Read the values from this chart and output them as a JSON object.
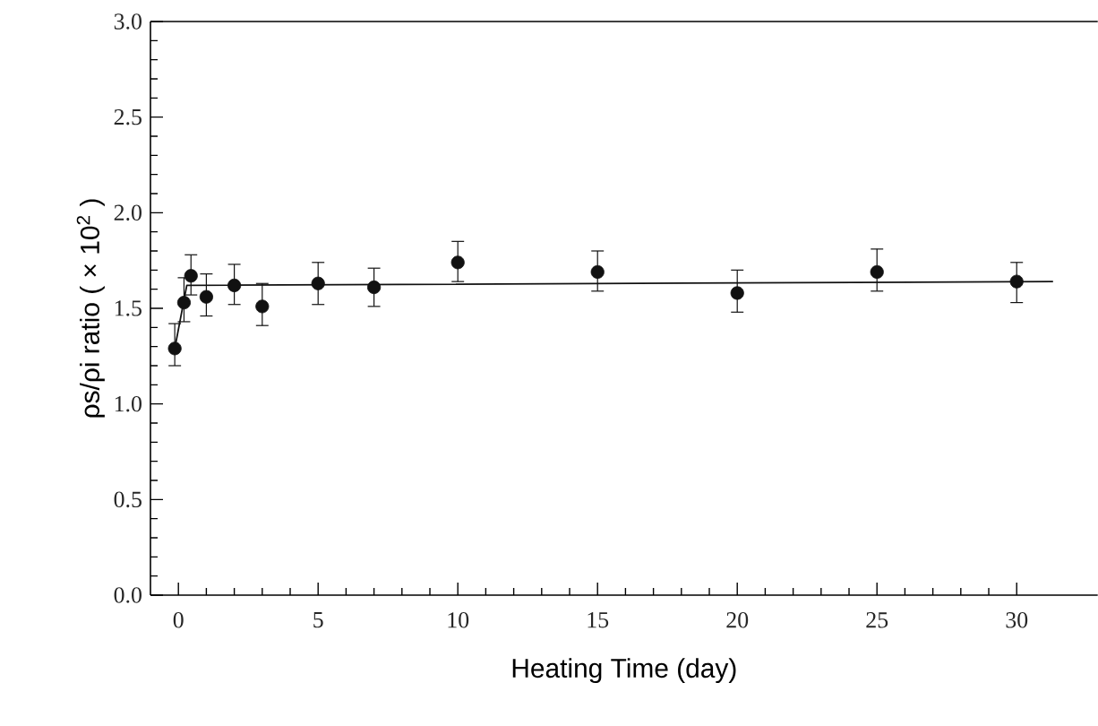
{
  "chart_data": {
    "type": "scatter",
    "xlabel": "Heating Time (day)",
    "ylabel": "ρs/ρi ratio ( × 10$^{2}$ )",
    "xlim": [
      -1,
      32.9
    ],
    "ylim": [
      0,
      3.0
    ],
    "xticks": [
      0,
      5,
      10,
      15,
      20,
      25,
      30
    ],
    "yticks": [
      {
        "value": 0,
        "label": "0.0"
      },
      {
        "value": 0.5,
        "label": "0.5"
      },
      {
        "value": 1,
        "label": "1.0"
      },
      {
        "value": 1.5,
        "label": "1.5"
      },
      {
        "value": 2,
        "label": "2.0"
      },
      {
        "value": 2.5,
        "label": "2.5"
      },
      {
        "value": 3,
        "label": "3.0"
      }
    ],
    "series": [
      {
        "marker": "circle",
        "color": "#111111",
        "x": [
          -0.13,
          0.2,
          0.45,
          1,
          2,
          3,
          5,
          7,
          10,
          15,
          20,
          25,
          30
        ],
        "values": [
          1.29,
          1.53,
          1.67,
          1.56,
          1.62,
          1.51,
          1.63,
          1.61,
          1.74,
          1.69,
          1.58,
          1.69,
          1.64
        ],
        "errors": [
          [
            1.2,
            1.42
          ],
          [
            1.43,
            1.66
          ],
          [
            1.57,
            1.78
          ],
          [
            1.46,
            1.68
          ],
          [
            1.52,
            1.73
          ],
          [
            1.41,
            1.63
          ],
          [
            1.52,
            1.74
          ],
          [
            1.51,
            1.71
          ],
          [
            1.64,
            1.85
          ],
          [
            1.59,
            1.8
          ],
          [
            1.48,
            1.7
          ],
          [
            1.59,
            1.81
          ],
          [
            1.53,
            1.74
          ]
        ]
      },
      {
        "type": "line",
        "marker": "none",
        "color": "#111111",
        "line_style": "solid",
        "x": [
          -0.13,
          0.3,
          31.3
        ],
        "values": [
          1.29,
          1.62,
          1.64
        ]
      }
    ]
  }
}
